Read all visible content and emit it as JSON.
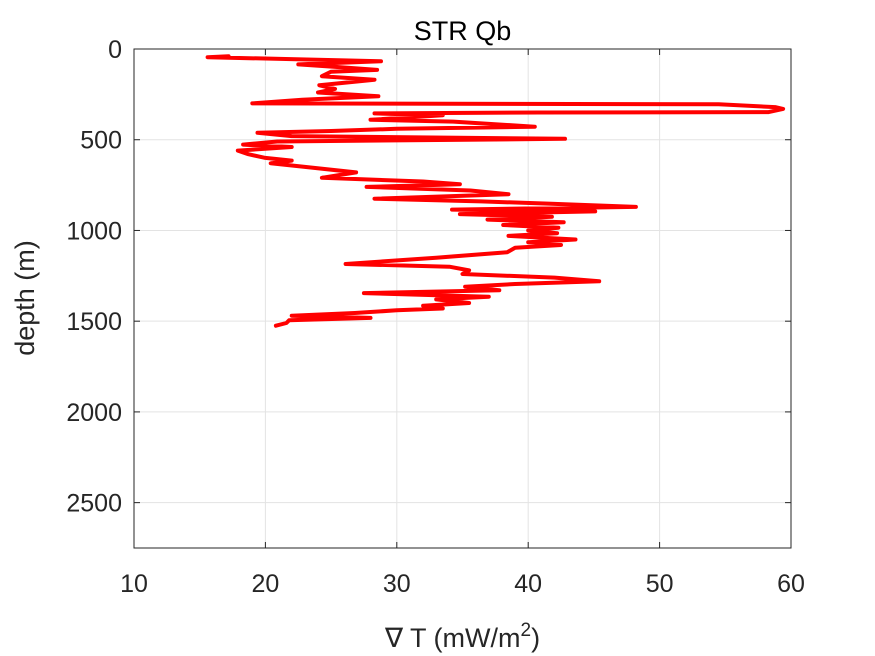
{
  "chart_data": {
    "type": "line",
    "title": "STR Qb",
    "xlabel_prefix": "∇ T (mW/m",
    "xlabel_sup": "2",
    "xlabel_suffix": ")",
    "ylabel": "depth (m)",
    "xlim": [
      10,
      60
    ],
    "ylim": [
      0,
      2750
    ],
    "y_reversed": true,
    "grid": true,
    "xticks": [
      10,
      20,
      30,
      40,
      50,
      60
    ],
    "yticks": [
      0,
      500,
      1000,
      1500,
      2000,
      2500
    ],
    "line_color": "#ff0000",
    "series": [
      {
        "points": [
          [
            17.2,
            40
          ],
          [
            15.6,
            45
          ],
          [
            28.8,
            68
          ],
          [
            22.5,
            85
          ],
          [
            25.6,
            100
          ],
          [
            28.5,
            115
          ],
          [
            25.0,
            125
          ],
          [
            24.3,
            150
          ],
          [
            28.3,
            170
          ],
          [
            24.1,
            200
          ],
          [
            25.3,
            220
          ],
          [
            24.0,
            240
          ],
          [
            28.6,
            260
          ],
          [
            22.8,
            280
          ],
          [
            19.0,
            300
          ],
          [
            54.5,
            305
          ],
          [
            58.8,
            320
          ],
          [
            59.4,
            330
          ],
          [
            58.3,
            348
          ],
          [
            40.9,
            350
          ],
          [
            28.3,
            355
          ],
          [
            33.5,
            365
          ],
          [
            28.0,
            390
          ],
          [
            34.3,
            400
          ],
          [
            40.5,
            428
          ],
          [
            39.0,
            430
          ],
          [
            30.0,
            440
          ],
          [
            25.0,
            452
          ],
          [
            19.4,
            462
          ],
          [
            22.0,
            480
          ],
          [
            42.8,
            495
          ],
          [
            20.9,
            510
          ],
          [
            18.3,
            527
          ],
          [
            22.0,
            540
          ],
          [
            17.9,
            560
          ],
          [
            18.7,
            580
          ],
          [
            20.0,
            600
          ],
          [
            22.0,
            615
          ],
          [
            20.4,
            630
          ],
          [
            23.0,
            650
          ],
          [
            26.9,
            680
          ],
          [
            24.3,
            710
          ],
          [
            32.0,
            730
          ],
          [
            34.8,
            745
          ],
          [
            27.7,
            760
          ],
          [
            35.6,
            780
          ],
          [
            38.5,
            800
          ],
          [
            28.3,
            825
          ],
          [
            36.4,
            840
          ],
          [
            41.5,
            852
          ],
          [
            48.2,
            870
          ],
          [
            34.2,
            885
          ],
          [
            45.1,
            895
          ],
          [
            34.8,
            910
          ],
          [
            41.8,
            925
          ],
          [
            36.9,
            940
          ],
          [
            42.7,
            955
          ],
          [
            38.1,
            970
          ],
          [
            42.3,
            985
          ],
          [
            40.0,
            1000
          ],
          [
            42.2,
            1015
          ],
          [
            38.5,
            1030
          ],
          [
            43.6,
            1050
          ],
          [
            40.0,
            1065
          ],
          [
            42.5,
            1080
          ],
          [
            39.0,
            1095
          ],
          [
            38.4,
            1120
          ],
          [
            33.0,
            1150
          ],
          [
            26.1,
            1185
          ],
          [
            34.0,
            1200
          ],
          [
            35.5,
            1220
          ],
          [
            35.0,
            1240
          ],
          [
            42.0,
            1260
          ],
          [
            45.4,
            1280
          ],
          [
            39.0,
            1295
          ],
          [
            35.2,
            1310
          ],
          [
            37.8,
            1330
          ],
          [
            27.5,
            1345
          ],
          [
            37.0,
            1365
          ],
          [
            33.0,
            1380
          ],
          [
            35.5,
            1400
          ],
          [
            32.0,
            1415
          ],
          [
            33.5,
            1430
          ],
          [
            30.0,
            1440
          ],
          [
            26.8,
            1455
          ],
          [
            22.0,
            1470
          ],
          [
            28.0,
            1482
          ],
          [
            21.8,
            1495
          ],
          [
            21.6,
            1510
          ],
          [
            20.8,
            1525
          ]
        ]
      }
    ]
  }
}
